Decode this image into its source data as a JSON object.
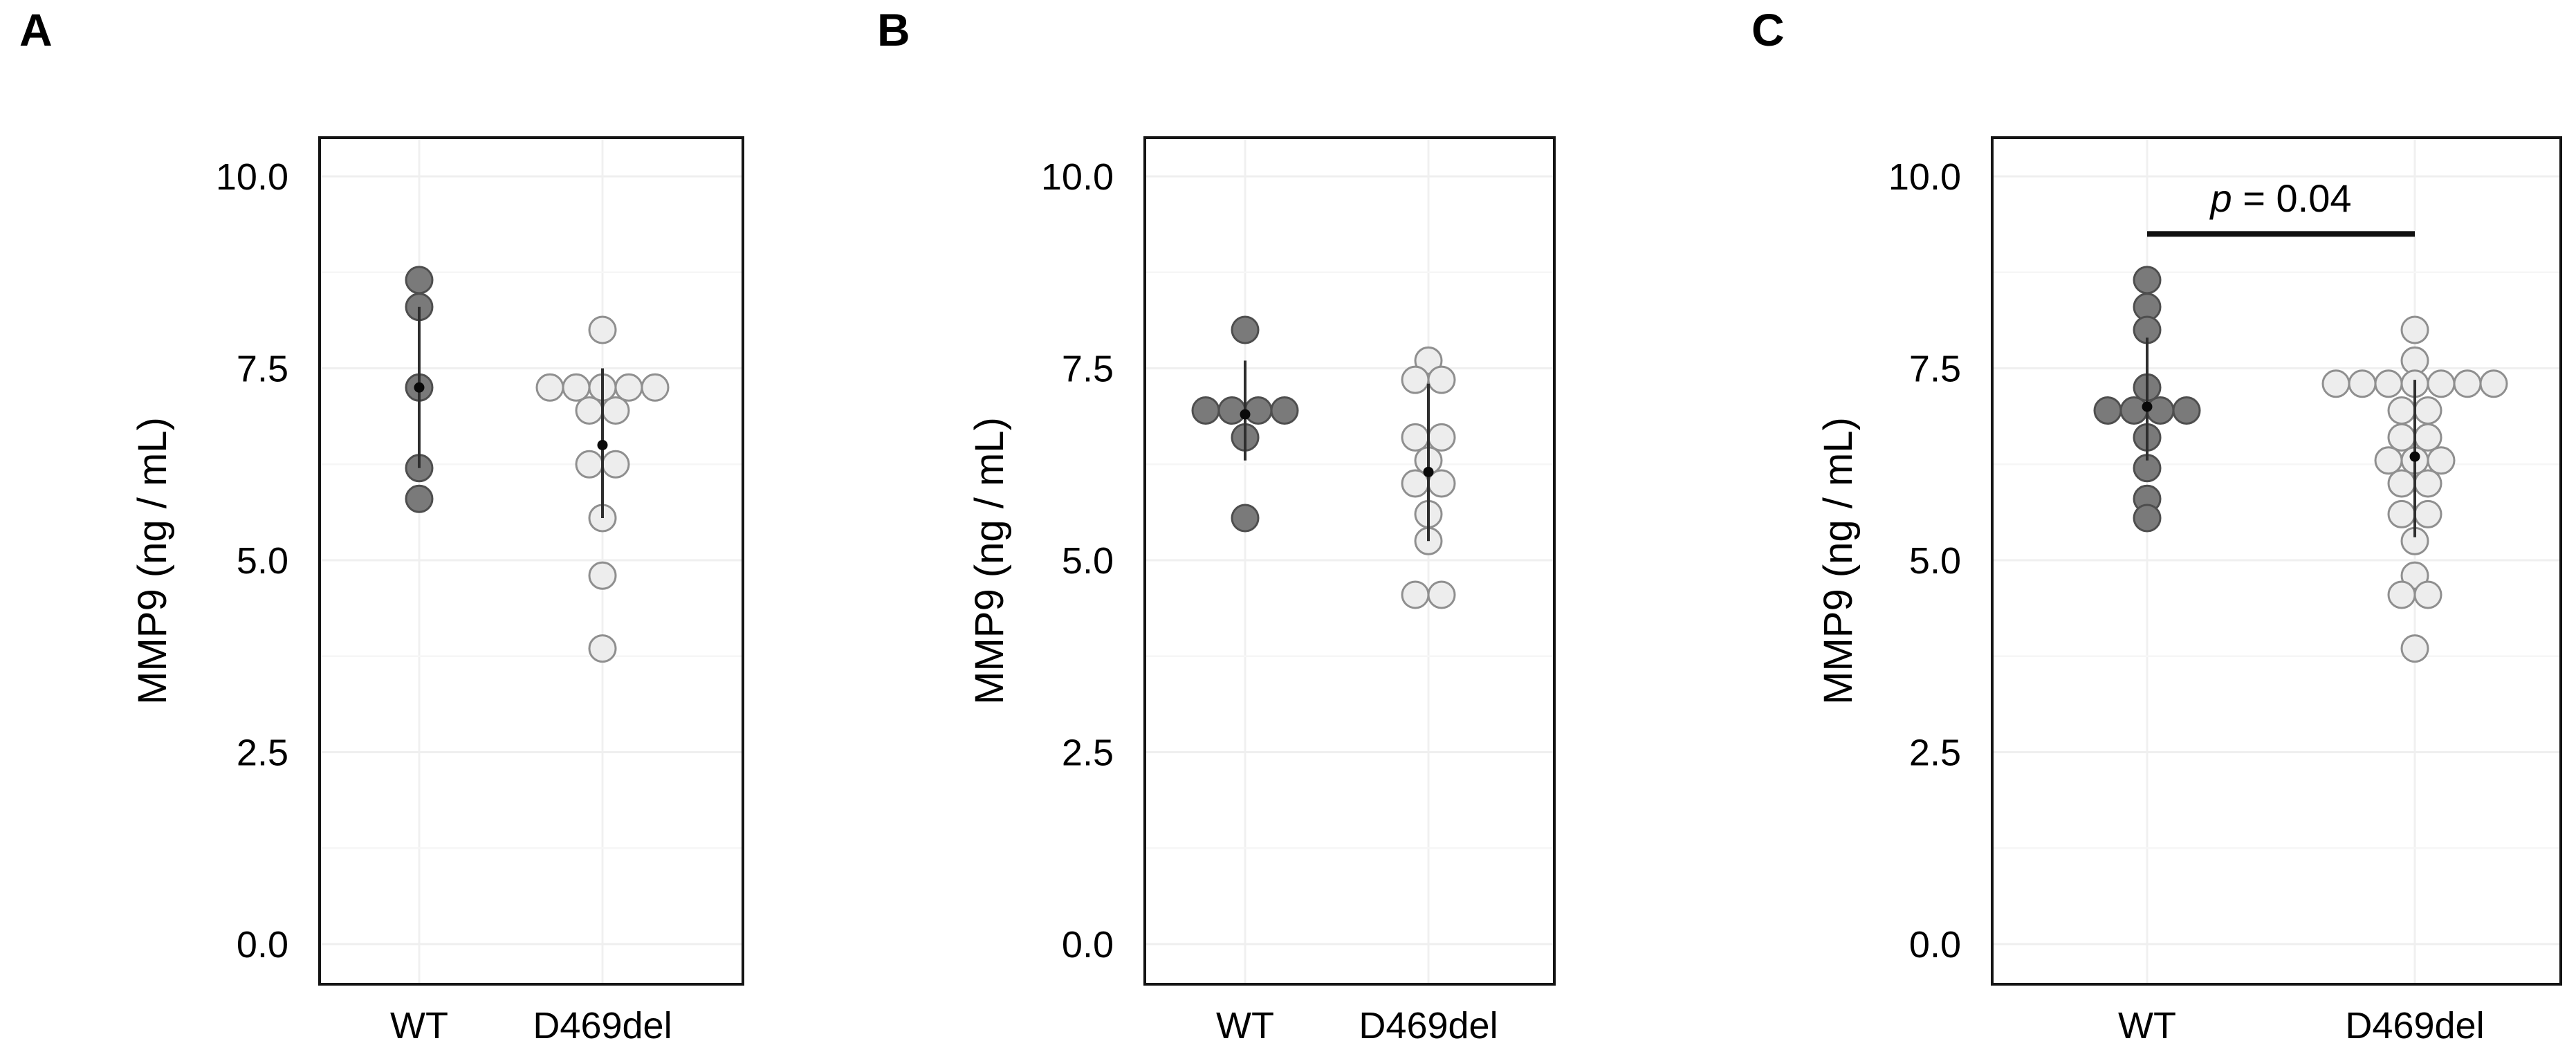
{
  "colors": {
    "background": "#ffffff",
    "text": "#000000",
    "box_border": "#141414",
    "grid_major": "#efefef",
    "grid_minor": "#f6f6f6",
    "column_gridline": "#f0f0f0",
    "error_bar": "#2e2e2e",
    "mean_marker": "#0a0a0a",
    "wt_dot_fill": "#7a7a7a",
    "wt_dot_stroke": "#4e4e4e",
    "d469del_dot_fill": "#ededed",
    "d469del_dot_stroke": "#8f8f8f"
  },
  "chart_data": [
    {
      "type": "scatter",
      "subtype": "dotplot-with-mean-sd",
      "panel_label": "A",
      "ylabel": "MMP9 (ng / mL)",
      "xlabel": "",
      "categories": [
        "WT",
        "D469del"
      ],
      "ylim": [
        0,
        10.5
      ],
      "grid": "on",
      "yticks": [
        {
          "value": 10,
          "label": "10.0"
        },
        {
          "value": 7.5,
          "label": "7.5"
        },
        {
          "value": 5,
          "label": "5.0"
        },
        {
          "value": 2.5,
          "label": "2.5"
        },
        {
          "value": 0,
          "label": "0.0"
        }
      ],
      "minor_gridlines": [
        1.25,
        3.75,
        6.25,
        8.75
      ],
      "series": [
        {
          "name": "WT",
          "dot_fill": "#7a7a7a",
          "dot_stroke": "#4e4e4e",
          "mean": 7.25,
          "errorbar_low": 6.2,
          "errorbar_high": 8.3,
          "points": [
            {
              "value": 8.65,
              "offset": 0
            },
            {
              "value": 8.3,
              "offset": 0
            },
            {
              "value": 7.25,
              "offset": 0
            },
            {
              "value": 6.2,
              "offset": 0
            },
            {
              "value": 5.8,
              "offset": 0
            }
          ]
        },
        {
          "name": "D469del",
          "dot_fill": "#ededed",
          "dot_stroke": "#8f8f8f",
          "mean": 6.5,
          "errorbar_low": 5.55,
          "errorbar_high": 7.5,
          "points": [
            {
              "value": 8.0,
              "offset": 0
            },
            {
              "value": 7.25,
              "offset": -2
            },
            {
              "value": 7.25,
              "offset": -1
            },
            {
              "value": 7.25,
              "offset": 0
            },
            {
              "value": 7.25,
              "offset": 1
            },
            {
              "value": 7.25,
              "offset": 2
            },
            {
              "value": 6.95,
              "offset": -0.5
            },
            {
              "value": 6.95,
              "offset": 0.5
            },
            {
              "value": 6.25,
              "offset": -0.5
            },
            {
              "value": 6.25,
              "offset": 0.5
            },
            {
              "value": 5.55,
              "offset": 0
            },
            {
              "value": 4.8,
              "offset": 0
            },
            {
              "value": 3.85,
              "offset": 0
            }
          ]
        }
      ],
      "significance": null
    },
    {
      "type": "scatter",
      "subtype": "dotplot-with-mean-sd",
      "panel_label": "B",
      "ylabel": "MMP9 (ng / mL)",
      "xlabel": "",
      "categories": [
        "WT",
        "D469del"
      ],
      "ylim": [
        0,
        10.5
      ],
      "grid": "on",
      "yticks": [
        {
          "value": 10,
          "label": "10.0"
        },
        {
          "value": 7.5,
          "label": "7.5"
        },
        {
          "value": 5,
          "label": "5.0"
        },
        {
          "value": 2.5,
          "label": "2.5"
        },
        {
          "value": 0,
          "label": "0.0"
        }
      ],
      "minor_gridlines": [
        1.25,
        3.75,
        6.25,
        8.75
      ],
      "series": [
        {
          "name": "WT",
          "dot_fill": "#7a7a7a",
          "dot_stroke": "#4e4e4e",
          "mean": 6.9,
          "errorbar_low": 6.3,
          "errorbar_high": 7.6,
          "points": [
            {
              "value": 8.0,
              "offset": 0
            },
            {
              "value": 6.95,
              "offset": -1.5
            },
            {
              "value": 6.95,
              "offset": -0.5
            },
            {
              "value": 6.95,
              "offset": 0.5
            },
            {
              "value": 6.95,
              "offset": 1.5
            },
            {
              "value": 6.6,
              "offset": 0
            },
            {
              "value": 5.55,
              "offset": 0
            }
          ]
        },
        {
          "name": "D469del",
          "dot_fill": "#ededed",
          "dot_stroke": "#8f8f8f",
          "mean": 6.15,
          "errorbar_low": 5.25,
          "errorbar_high": 7.3,
          "points": [
            {
              "value": 7.6,
              "offset": 0
            },
            {
              "value": 7.35,
              "offset": -0.5
            },
            {
              "value": 7.35,
              "offset": 0.5
            },
            {
              "value": 6.6,
              "offset": -0.5
            },
            {
              "value": 6.6,
              "offset": 0.5
            },
            {
              "value": 6.3,
              "offset": 0
            },
            {
              "value": 6.0,
              "offset": -0.5
            },
            {
              "value": 6.0,
              "offset": 0.5
            },
            {
              "value": 5.6,
              "offset": 0
            },
            {
              "value": 5.25,
              "offset": 0
            },
            {
              "value": 4.55,
              "offset": -0.5
            },
            {
              "value": 4.55,
              "offset": 0.5
            }
          ]
        }
      ],
      "significance": null
    },
    {
      "type": "scatter",
      "subtype": "dotplot-with-mean-sd",
      "panel_label": "C",
      "ylabel": "MMP9 (ng / mL)",
      "xlabel": "",
      "categories": [
        "WT",
        "D469del"
      ],
      "ylim": [
        0,
        10.5
      ],
      "grid": "on",
      "yticks": [
        {
          "value": 10,
          "label": "10.0"
        },
        {
          "value": 7.5,
          "label": "7.5"
        },
        {
          "value": 5,
          "label": "5.0"
        },
        {
          "value": 2.5,
          "label": "2.5"
        },
        {
          "value": 0,
          "label": "0.0"
        }
      ],
      "minor_gridlines": [
        1.25,
        3.75,
        6.25,
        8.75
      ],
      "series": [
        {
          "name": "WT",
          "dot_fill": "#7a7a7a",
          "dot_stroke": "#4e4e4e",
          "mean": 7.0,
          "errorbar_low": 6.3,
          "errorbar_high": 7.9,
          "points": [
            {
              "value": 8.65,
              "offset": 0
            },
            {
              "value": 8.3,
              "offset": 0
            },
            {
              "value": 8.0,
              "offset": 0
            },
            {
              "value": 7.25,
              "offset": 0
            },
            {
              "value": 6.95,
              "offset": -1.5
            },
            {
              "value": 6.95,
              "offset": -0.5
            },
            {
              "value": 6.95,
              "offset": 0.5
            },
            {
              "value": 6.95,
              "offset": 1.5
            },
            {
              "value": 6.6,
              "offset": 0
            },
            {
              "value": 6.2,
              "offset": 0
            },
            {
              "value": 5.8,
              "offset": 0
            },
            {
              "value": 5.55,
              "offset": 0
            }
          ]
        },
        {
          "name": "D469del",
          "dot_fill": "#ededed",
          "dot_stroke": "#8f8f8f",
          "mean": 6.35,
          "errorbar_low": 5.3,
          "errorbar_high": 7.35,
          "points": [
            {
              "value": 8.0,
              "offset": 0
            },
            {
              "value": 7.6,
              "offset": 0
            },
            {
              "value": 7.3,
              "offset": -3
            },
            {
              "value": 7.3,
              "offset": -2
            },
            {
              "value": 7.3,
              "offset": -1
            },
            {
              "value": 7.3,
              "offset": 0
            },
            {
              "value": 7.3,
              "offset": 1
            },
            {
              "value": 7.3,
              "offset": 2
            },
            {
              "value": 7.3,
              "offset": 3
            },
            {
              "value": 6.95,
              "offset": -0.5
            },
            {
              "value": 6.95,
              "offset": 0.5
            },
            {
              "value": 6.6,
              "offset": -0.5
            },
            {
              "value": 6.6,
              "offset": 0.5
            },
            {
              "value": 6.3,
              "offset": -1
            },
            {
              "value": 6.3,
              "offset": 0
            },
            {
              "value": 6.3,
              "offset": 1
            },
            {
              "value": 6.0,
              "offset": -0.5
            },
            {
              "value": 6.0,
              "offset": 0.5
            },
            {
              "value": 5.6,
              "offset": -0.5
            },
            {
              "value": 5.6,
              "offset": 0.5
            },
            {
              "value": 5.25,
              "offset": 0
            },
            {
              "value": 4.8,
              "offset": 0
            },
            {
              "value": 4.55,
              "offset": -0.5
            },
            {
              "value": 4.55,
              "offset": 0.5
            },
            {
              "value": 3.85,
              "offset": 0
            }
          ]
        }
      ],
      "significance": {
        "label_italic": "p",
        "label_rest": " = 0.04",
        "bar_value": 9.25,
        "text_value": 9.72
      }
    }
  ]
}
